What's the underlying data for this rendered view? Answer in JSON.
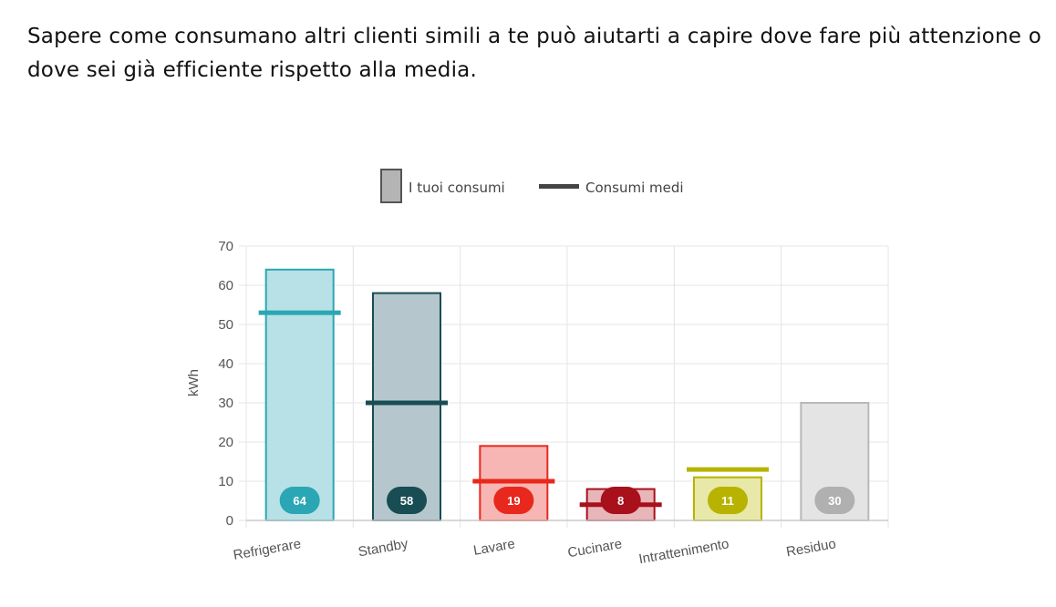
{
  "intro": {
    "text": "Sapere come consumano altri clienti simili a te può aiutarti a capire dove fare più attenzione o dove sei già efficiente rispetto alla media."
  },
  "chart_data": {
    "type": "bar",
    "ylabel": "kWh",
    "ylim": [
      0,
      70
    ],
    "yticks": [
      0,
      10,
      20,
      30,
      40,
      50,
      60,
      70
    ],
    "grid": true,
    "legend_position": "top",
    "categories": [
      "Refrigerare",
      "Standby",
      "Lavare",
      "Cucinare",
      "Intrattenimento",
      "Residuo"
    ],
    "series": [
      {
        "name": "I tuoi consumi",
        "kind": "bar",
        "values": [
          64,
          58,
          19,
          8,
          11,
          30
        ]
      },
      {
        "name": "Consumi medi",
        "kind": "line-marker",
        "values": [
          53,
          30,
          10,
          4,
          13,
          null
        ]
      }
    ],
    "data_labels": [
      "64",
      "58",
      "19",
      "8",
      "11",
      "30"
    ],
    "colors": {
      "fill": [
        "#b7e1e6",
        "#b5c7cc",
        "#f7b6b4",
        "#e8b5b9",
        "#e8e8a8",
        "#e4e4e4"
      ],
      "stroke": [
        "#2aa6b4",
        "#174d53",
        "#e8281c",
        "#a8101b",
        "#b7b300",
        "#b8b8b8"
      ],
      "badge": [
        "#2aa6b4",
        "#174d53",
        "#e8281c",
        "#a8101b",
        "#b7b300",
        "#b0b0b0"
      ],
      "avg": [
        "#2aa6b4",
        "#174d53",
        "#e8281c",
        "#a8101b",
        "#b7b300",
        null
      ],
      "legend_swatch": "#b4b4b4",
      "legend_swatch_border": "#555555",
      "legend_line": "#444444",
      "grid": "#e4e4e4",
      "axis": "#cccccc"
    }
  }
}
